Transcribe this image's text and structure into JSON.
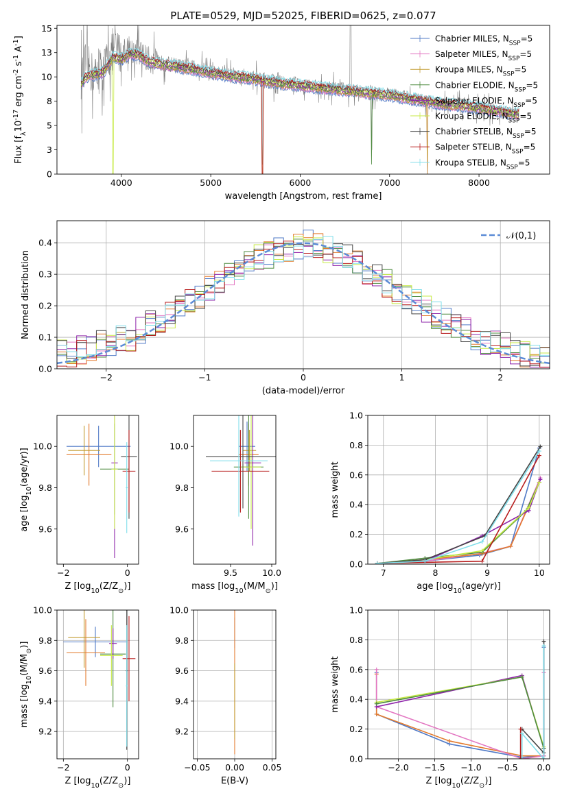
{
  "chart_data": [
    {
      "id": "spectrum",
      "type": "line",
      "title": "PLATE=0529, MJD=52025, FIBERID=0625, z=0.077",
      "xlabel": "wavelength [Angstrom, rest frame]",
      "ylabel": "Flux [f$_\\lambda$10$^{-17}$ erg cm$^{-2}$ s$^{-1}$ A$^{-1}$]",
      "xlim": [
        3280,
        8790
      ],
      "ylim": [
        0,
        15.3
      ],
      "xticks": [
        4000,
        5000,
        6000,
        7000,
        8000
      ],
      "yticks": [
        0.0,
        2.5,
        5.0,
        7.5,
        10.0,
        12.5,
        15.0
      ],
      "grid": false,
      "legend_position": "top-right",
      "data_line_x": [
        3550,
        3600,
        3700,
        3800,
        3900,
        4000,
        4100,
        4200,
        4300,
        4400,
        4500,
        4600,
        4700,
        4800,
        4900,
        5000,
        5200,
        5400,
        5600,
        5800,
        6000,
        6200,
        6400,
        6600,
        6800,
        7000,
        7200,
        7400,
        7600,
        7800,
        8000,
        8200,
        8400
      ],
      "data_line_y": [
        9.5,
        11.5,
        10.0,
        10.8,
        12.8,
        12.5,
        12.8,
        12.5,
        11.8,
        11.5,
        11.3,
        11.2,
        11.0,
        10.9,
        10.7,
        10.5,
        10.2,
        10.0,
        9.6,
        9.4,
        9.2,
        9.0,
        8.8,
        8.6,
        8.4,
        8.2,
        7.9,
        7.5,
        7.3,
        7.1,
        6.8,
        6.5,
        6.2
      ],
      "model_y": [
        9.2,
        10.0,
        10.2,
        10.5,
        12.0,
        11.8,
        12.4,
        12.2,
        11.6,
        11.4,
        11.2,
        11.1,
        10.9,
        10.8,
        10.6,
        10.4,
        10.1,
        9.9,
        9.6,
        9.3,
        9.1,
        8.9,
        8.7,
        8.5,
        8.3,
        8.1,
        7.8,
        7.5,
        7.2,
        7.0,
        6.8,
        6.5,
        6.2
      ],
      "series": [
        {
          "name": "Chabrier MILES, N$_{SSP}$=5",
          "color": "#4f79c6"
        },
        {
          "name": "Salpeter MILES, N$_{SSP}$=5",
          "color": "#e377c2"
        },
        {
          "name": "Kroupa MILES, N$_{SSP}$=5",
          "color": "#c29a2e"
        },
        {
          "name": "Chabrier ELODIE, N$_{SSP}$=5",
          "color": "#4d8a3e"
        },
        {
          "name": "Salpeter ELODIE, N$_{SSP}$=5",
          "color": "#8e24aa"
        },
        {
          "name": "Kroupa ELODIE, N$_{SSP}$=5",
          "color": "#c7ea46"
        },
        {
          "name": "Chabrier STELIB, N$_{SSP}$=5",
          "color": "#444444"
        },
        {
          "name": "Salpeter STELIB, N$_{SSP}$=5",
          "color": "#b71c1c"
        },
        {
          "name": "Kroupa STELIB, N$_{SSP}$=5",
          "color": "#80deea"
        }
      ]
    },
    {
      "id": "residuals",
      "type": "line",
      "xlabel": "(data-model)/error",
      "ylabel": "Normed distribution",
      "xlim": [
        -2.5,
        2.5
      ],
      "ylim": [
        0,
        0.47
      ],
      "xticks": [
        -2,
        -1,
        0,
        1,
        2
      ],
      "yticks": [
        0.0,
        0.1,
        0.2,
        0.3,
        0.4
      ],
      "grid": true,
      "legend_position": "top-right",
      "legend": "$\\mathcal{N}(0,1)$",
      "bins_left": -2.5,
      "bin_width": 0.1,
      "hist_base": [
        0.05,
        0.05,
        0.06,
        0.07,
        0.08,
        0.08,
        0.1,
        0.1,
        0.12,
        0.14,
        0.16,
        0.17,
        0.19,
        0.21,
        0.23,
        0.25,
        0.27,
        0.29,
        0.31,
        0.33,
        0.35,
        0.36,
        0.38,
        0.38,
        0.39,
        0.4,
        0.39,
        0.38,
        0.37,
        0.35,
        0.33,
        0.31,
        0.29,
        0.27,
        0.25,
        0.23,
        0.21,
        0.19,
        0.17,
        0.15,
        0.13,
        0.12,
        0.1,
        0.09,
        0.08,
        0.07,
        0.06,
        0.05,
        0.04,
        0.03
      ]
    },
    {
      "id": "age-vs-Z",
      "type": "scatter",
      "xlabel": "Z [log$_{10}$(Z/Z$_\\odot$)]",
      "ylabel": "age  [log$_{10}$(age/yr)]",
      "xlim": [
        -2.2,
        0.35
      ],
      "ylim": [
        9.43,
        10.15
      ],
      "xticks": [
        -2,
        0
      ],
      "yticks": [
        9.6,
        9.8,
        10.0
      ],
      "grid": false,
      "points": [
        {
          "x": -0.9,
          "y": 10.0,
          "xerr": 1.0,
          "yerr": 0.1
        },
        {
          "x": -1.2,
          "y": 9.96,
          "xerr": 0.7,
          "yerr": 0.15
        },
        {
          "x": -1.35,
          "y": 9.98,
          "xerr": 0.5,
          "yerr": 0.12
        },
        {
          "x": -0.4,
          "y": 9.89,
          "xerr": 0.45,
          "yerr": 0.22
        },
        {
          "x": -0.4,
          "y": 9.92,
          "xerr": 0.1,
          "yerr": 0.46
        },
        {
          "x": -0.4,
          "y": 9.89,
          "xerr": 0.1,
          "yerr": 0.29
        },
        {
          "x": 0.05,
          "y": 9.95,
          "xerr": 0.25,
          "yerr": 0.3
        },
        {
          "x": 0.05,
          "y": 9.88,
          "xerr": 0.2,
          "yerr": 0.2
        },
        {
          "x": -0.02,
          "y": 9.8,
          "xerr": 0.03,
          "yerr": 0.22
        }
      ]
    },
    {
      "id": "age-vs-mass",
      "type": "scatter",
      "xlabel": "mass [log$_{10}$(M/M$_\\odot$)]",
      "ylabel": "",
      "xlim": [
        9.05,
        10.05
      ],
      "ylim": [
        9.43,
        10.15
      ],
      "xticks": [
        9.5,
        10.0
      ],
      "yticks": [
        9.6,
        9.8,
        10.0
      ],
      "grid": false,
      "points": [
        {
          "x": 9.7,
          "y": 10.0,
          "xerr": 0.1,
          "yerr": 0.12
        },
        {
          "x": 9.72,
          "y": 9.96,
          "xerr": 0.12,
          "yerr": 0.15
        },
        {
          "x": 9.73,
          "y": 9.98,
          "xerr": 0.08,
          "yerr": 0.1
        },
        {
          "x": 9.72,
          "y": 9.9,
          "xerr": 0.18,
          "yerr": 0.25
        },
        {
          "x": 9.77,
          "y": 9.92,
          "xerr": 0.1,
          "yerr": 0.4
        },
        {
          "x": 9.75,
          "y": 9.9,
          "xerr": 0.12,
          "yerr": 0.3
        },
        {
          "x": 9.65,
          "y": 9.95,
          "xerr": 0.45,
          "yerr": 0.25
        },
        {
          "x": 9.62,
          "y": 9.88,
          "xerr": 0.35,
          "yerr": 0.2
        },
        {
          "x": 9.6,
          "y": 9.93,
          "xerr": 0.35,
          "yerr": 0.27
        }
      ]
    },
    {
      "id": "weight-vs-age",
      "type": "line",
      "xlabel": "age  [log$_{10}$(age/yr)]",
      "ylabel": "mass weight",
      "xlim": [
        6.7,
        10.2
      ],
      "ylim": [
        0,
        1.0
      ],
      "xticks": [
        7,
        8,
        9,
        10
      ],
      "yticks": [
        0.0,
        0.2,
        0.4,
        0.6,
        0.8,
        1.0
      ],
      "grid": true,
      "series": [
        {
          "color": "#4f79c6",
          "x": [
            6.88,
            7.8,
            8.85,
            9.45,
            10.0
          ],
          "y": [
            0.005,
            0.02,
            0.06,
            0.12,
            0.78
          ]
        },
        {
          "color": "#e377c2",
          "x": [
            6.88,
            7.8,
            8.85,
            9.45,
            10.02
          ],
          "y": [
            0.005,
            0.02,
            0.07,
            0.12,
            0.58
          ]
        },
        {
          "color": "#e37b2e",
          "x": [
            6.88,
            7.8,
            8.9,
            9.45,
            10.0
          ],
          "y": [
            0.005,
            0.03,
            0.07,
            0.12,
            0.55
          ]
        },
        {
          "color": "#4d8a3e",
          "x": [
            6.88,
            7.8,
            8.9,
            9.75,
            10.0
          ],
          "y": [
            0.005,
            0.04,
            0.08,
            0.36,
            0.55
          ]
        },
        {
          "color": "#8e24aa",
          "x": [
            6.88,
            7.8,
            8.9,
            9.8,
            10.02
          ],
          "y": [
            0.005,
            0.02,
            0.19,
            0.36,
            0.57
          ]
        },
        {
          "color": "#c7ea46",
          "x": [
            6.88,
            7.8,
            8.9,
            9.8,
            10.0
          ],
          "y": [
            0.005,
            0.03,
            0.09,
            0.38,
            0.55
          ]
        },
        {
          "color": "#444444",
          "x": [
            6.88,
            7.8,
            8.95,
            10.02
          ],
          "y": [
            0.005,
            0.03,
            0.19,
            0.79
          ]
        },
        {
          "color": "#b71c1c",
          "x": [
            6.88,
            8.9,
            10.0
          ],
          "y": [
            0.005,
            0.02,
            0.73
          ]
        },
        {
          "color": "#80deea",
          "x": [
            6.88,
            7.8,
            8.9,
            10.0
          ],
          "y": [
            0.005,
            0.02,
            0.15,
            0.76
          ]
        }
      ]
    },
    {
      "id": "mass-vs-Z",
      "type": "scatter",
      "xlabel": "Z [log$_{10}$(Z/Z$_\\odot$)]",
      "ylabel": "mass [log$_{10}$(M/M$_\\odot$)]",
      "xlim": [
        -2.2,
        0.35
      ],
      "ylim": [
        9.02,
        10.0
      ],
      "xticks": [
        -2,
        0
      ],
      "yticks": [
        9.2,
        9.4,
        9.6,
        9.8,
        10.0
      ],
      "grid": true,
      "points": [
        {
          "x": -1.0,
          "y": 9.79,
          "xerr": 1.0,
          "yerr": 0.1
        },
        {
          "x": -1.3,
          "y": 9.72,
          "xerr": 0.6,
          "yerr": 0.22
        },
        {
          "x": -1.35,
          "y": 9.82,
          "xerr": 0.5,
          "yerr": 0.2
        },
        {
          "x": -0.45,
          "y": 9.71,
          "xerr": 0.4,
          "yerr": 0.35
        },
        {
          "x": -0.45,
          "y": 9.78,
          "xerr": 0.12,
          "yerr": 0.1
        },
        {
          "x": -0.5,
          "y": 9.7,
          "xerr": 0.35,
          "yerr": 0.2
        },
        {
          "x": -0.02,
          "y": 9.6,
          "xerr": 0.03,
          "yerr": 0.52
        },
        {
          "x": 0.05,
          "y": 9.68,
          "xerr": 0.2,
          "yerr": 0.28
        },
        {
          "x": -0.02,
          "y": 9.5,
          "xerr": 0.03,
          "yerr": 0.4
        }
      ]
    },
    {
      "id": "mass-vs-EBV",
      "type": "scatter",
      "xlabel": "E(B-V)",
      "ylabel": "",
      "xlim": [
        -0.055,
        0.055
      ],
      "ylim": [
        9.02,
        10.0
      ],
      "xticks": [
        -0.05,
        0.0,
        0.05
      ],
      "yticks": [
        9.2,
        9.4,
        9.6,
        9.8,
        10.0
      ],
      "grid": true,
      "points": [
        {
          "x": 0.0,
          "y": 9.85,
          "xerr": 0,
          "yerr": 0.1
        },
        {
          "x": 0.0,
          "y": 9.6,
          "xerr": 0,
          "yerr": 0.55
        },
        {
          "x": 0.0,
          "y": 9.4,
          "xerr": 0,
          "yerr": 0.25
        }
      ]
    },
    {
      "id": "weight-vs-Z",
      "type": "line",
      "xlabel": "Z [log$_{10}$(Z/Z$_\\odot$)]",
      "ylabel": "mass weight",
      "xlim": [
        -2.42,
        0.08
      ],
      "ylim": [
        0,
        1.0
      ],
      "xticks": [
        -2.0,
        -1.5,
        -1.0,
        -0.5,
        0.0
      ],
      "yticks": [
        0.0,
        0.2,
        0.4,
        0.6,
        0.8,
        1.0
      ],
      "grid": true,
      "series": [
        {
          "color": "#4f79c6",
          "x": [
            -2.3,
            -2.3,
            -1.3,
            -0.3,
            0.0,
            0.0
          ],
          "y": [
            0.58,
            0.3,
            0.1,
            0.01,
            0.02,
            0.75
          ]
        },
        {
          "color": "#e37b2e",
          "x": [
            -2.3,
            -2.3,
            -1.3,
            -0.3,
            0.0
          ],
          "y": [
            0.57,
            0.3,
            0.12,
            0.02,
            0.02
          ]
        },
        {
          "color": "#e377c2",
          "x": [
            -2.3,
            -2.3,
            -0.3,
            0.0,
            0.0
          ],
          "y": [
            0.6,
            0.35,
            0.0,
            0.02,
            0.58
          ]
        },
        {
          "color": "#8e24aa",
          "x": [
            -2.3,
            -0.3,
            0.0
          ],
          "y": [
            0.35,
            0.56,
            0.07
          ]
        },
        {
          "color": "#c7ea46",
          "x": [
            -2.3,
            -0.3,
            0.0
          ],
          "y": [
            0.38,
            0.55,
            0.08
          ]
        },
        {
          "color": "#4d8a3e",
          "x": [
            -2.3,
            -0.3,
            0.0
          ],
          "y": [
            0.37,
            0.55,
            0.07
          ]
        },
        {
          "color": "#444444",
          "x": [
            -0.3,
            0.0,
            0.0
          ],
          "y": [
            0.2,
            0.04,
            0.79
          ]
        },
        {
          "color": "#b71c1c",
          "x": [
            -0.32,
            -0.32
          ],
          "y": [
            0.0,
            0.2
          ]
        },
        {
          "color": "#80deea",
          "x": [
            -0.3,
            -0.3,
            0.0,
            0.0
          ],
          "y": [
            0.0,
            0.17,
            0.0,
            0.76
          ]
        }
      ]
    }
  ]
}
